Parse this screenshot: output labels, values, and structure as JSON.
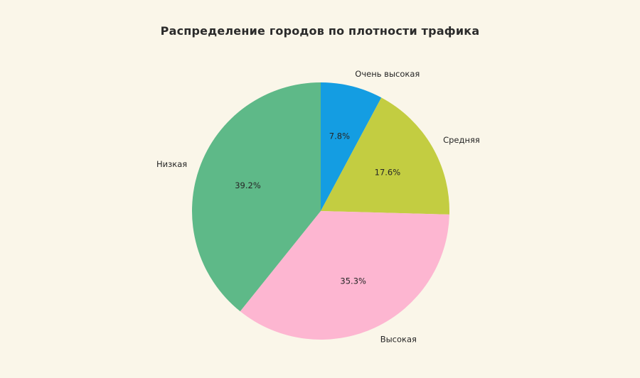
{
  "page": {
    "background_color": "#faf6e9",
    "text_color": "#262626"
  },
  "chart_data": {
    "type": "pie",
    "title": "Распределение городов по плотности трафика",
    "legend_position": "none",
    "start_angle_deg": 0,
    "direction": "clockwise",
    "slices": [
      {
        "label": "Очень высокая",
        "value_pct": 7.8,
        "pct_label": "7.8%",
        "color": "#149de2"
      },
      {
        "label": "Средняя",
        "value_pct": 17.6,
        "pct_label": "17.6%",
        "color": "#c3cd41"
      },
      {
        "label": "Высокая",
        "value_pct": 35.3,
        "pct_label": "35.3%",
        "color": "#fdb6d1"
      },
      {
        "label": "Низкая",
        "value_pct": 39.2,
        "pct_label": "39.2%",
        "color": "#5eb988"
      }
    ]
  }
}
